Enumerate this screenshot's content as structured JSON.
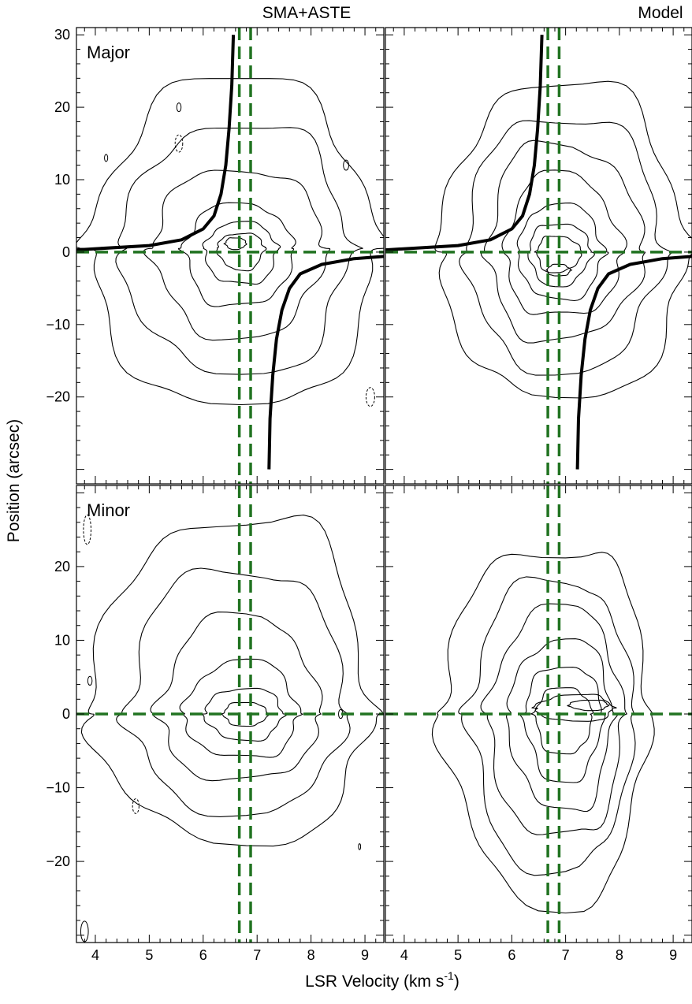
{
  "chart_data": [
    {
      "type": "contour",
      "column_title": "SMA+ASTE",
      "panel_label": "Major",
      "xlim": [
        3.65,
        9.35
      ],
      "ylim": [
        -32,
        31
      ],
      "x_ticks": [
        4,
        5,
        6,
        7,
        8,
        9
      ],
      "y_ticks": [
        -20,
        -10,
        0,
        10,
        20,
        30
      ],
      "systemic_velocity_lines": [
        6.67,
        6.88
      ],
      "zero_position_line": 0,
      "rotation_curve": [
        [
          [
            3.65,
            0.3
          ],
          [
            5.0,
            0.9
          ],
          [
            5.6,
            1.7
          ],
          [
            6.0,
            3.2
          ],
          [
            6.2,
            5.0
          ],
          [
            6.33,
            8.0
          ],
          [
            6.42,
            12.0
          ],
          [
            6.48,
            17.0
          ],
          [
            6.53,
            23.0
          ],
          [
            6.56,
            30.0
          ]
        ],
        [
          [
            7.22,
            -30.0
          ],
          [
            7.24,
            -23.0
          ],
          [
            7.29,
            -17.0
          ],
          [
            7.36,
            -12.0
          ],
          [
            7.46,
            -8.0
          ],
          [
            7.6,
            -5.0
          ],
          [
            7.8,
            -3.0
          ],
          [
            8.2,
            -1.7
          ],
          [
            8.8,
            -0.9
          ],
          [
            9.35,
            -0.6
          ]
        ]
      ],
      "contour_peak": {
        "velocity": 6.7,
        "position": 0.5
      },
      "contour_levels": 7
    },
    {
      "type": "contour",
      "column_title": "Model",
      "panel_label": "",
      "xlim": [
        3.65,
        9.35
      ],
      "ylim": [
        -32,
        31
      ],
      "x_ticks": [
        4,
        5,
        6,
        7,
        8,
        9
      ],
      "y_ticks": [
        -20,
        -10,
        0,
        10,
        20,
        30
      ],
      "systemic_velocity_lines": [
        6.67,
        6.88
      ],
      "zero_position_line": 0,
      "rotation_curve": [
        [
          [
            3.65,
            0.3
          ],
          [
            5.0,
            0.9
          ],
          [
            5.6,
            1.7
          ],
          [
            6.0,
            3.2
          ],
          [
            6.2,
            5.0
          ],
          [
            6.33,
            8.0
          ],
          [
            6.42,
            12.0
          ],
          [
            6.48,
            17.0
          ],
          [
            6.53,
            23.0
          ],
          [
            6.56,
            30.0
          ]
        ],
        [
          [
            7.22,
            -30.0
          ],
          [
            7.24,
            -23.0
          ],
          [
            7.29,
            -17.0
          ],
          [
            7.36,
            -12.0
          ],
          [
            7.46,
            -8.0
          ],
          [
            7.6,
            -5.0
          ],
          [
            7.8,
            -3.0
          ],
          [
            8.2,
            -1.7
          ],
          [
            8.8,
            -0.9
          ],
          [
            9.35,
            -0.6
          ]
        ]
      ],
      "contour_peak": {
        "velocity": 6.8,
        "position": 0.0
      },
      "contour_levels": 8
    },
    {
      "type": "contour",
      "column_title": "",
      "panel_label": "Minor",
      "xlim": [
        3.65,
        9.35
      ],
      "ylim": [
        -31,
        31
      ],
      "x_ticks": [
        4,
        5,
        6,
        7,
        8,
        9
      ],
      "y_ticks": [
        -20,
        -10,
        0,
        10,
        20
      ],
      "systemic_velocity_lines": [
        6.67,
        6.88
      ],
      "zero_position_line": 0,
      "contour_peak": {
        "velocity": 6.8,
        "position": 0.0
      },
      "contour_levels": 6
    },
    {
      "type": "contour",
      "column_title": "",
      "panel_label": "",
      "xlim": [
        3.65,
        9.35
      ],
      "ylim": [
        -31,
        31
      ],
      "x_ticks": [
        4,
        5,
        6,
        7,
        8,
        9
      ],
      "y_ticks": [
        -20,
        -10,
        0,
        10,
        20
      ],
      "systemic_velocity_lines": [
        6.67,
        6.88
      ],
      "zero_position_line": 0,
      "contour_peak": {
        "velocity": 7.4,
        "position": 0.5
      },
      "contour_levels": 8
    }
  ],
  "axes": {
    "xlabel": "LSR Velocity (km s",
    "xlabel_sup": "-1",
    "xlabel_tail": ")",
    "ylabel": "Position (arcsec)"
  },
  "colors": {
    "reference_lines": "#217321",
    "contours": "#000000",
    "rotation_curve": "#000000"
  }
}
